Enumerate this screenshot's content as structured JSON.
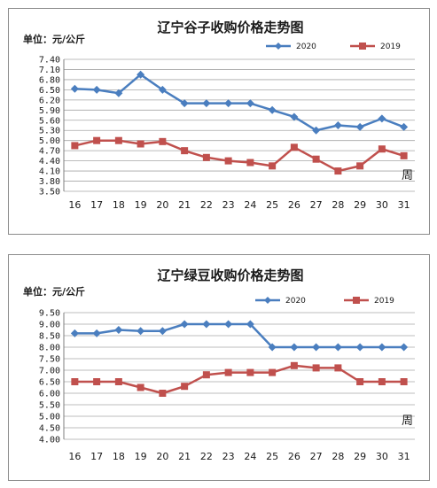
{
  "chart_data": [
    {
      "type": "line",
      "title": "辽宁谷子收购价格走势图",
      "ylabel": "单位：元/公斤",
      "xlabel": "周",
      "x": [
        16,
        17,
        18,
        19,
        20,
        21,
        22,
        23,
        24,
        25,
        26,
        27,
        28,
        29,
        30,
        31
      ],
      "ylim": [
        3.5,
        7.4
      ],
      "yticks": [
        "7.40",
        "7.10",
        "6.80",
        "6.50",
        "6.20",
        "5.90",
        "5.60",
        "5.30",
        "5.00",
        "4.70",
        "4.40",
        "4.10",
        "3.80",
        "3.50"
      ],
      "legend": "top-right",
      "series": [
        {
          "name": "2020",
          "color": "#4a7ebf",
          "marker": "diamond",
          "values": [
            6.53,
            6.5,
            6.4,
            6.95,
            6.5,
            6.1,
            6.1,
            6.1,
            6.1,
            5.9,
            5.7,
            5.3,
            5.45,
            5.4,
            5.65,
            5.4
          ]
        },
        {
          "name": "2019",
          "color": "#c0504d",
          "marker": "square",
          "values": [
            4.85,
            5.0,
            5.0,
            4.9,
            4.97,
            4.7,
            4.5,
            4.4,
            4.35,
            4.25,
            4.8,
            4.45,
            4.1,
            4.25,
            4.75,
            4.55
          ]
        }
      ]
    },
    {
      "type": "line",
      "title": "辽宁绿豆收购价格走势图",
      "ylabel": "单位：元/公斤",
      "xlabel": "周",
      "x": [
        16,
        17,
        18,
        19,
        20,
        21,
        22,
        23,
        24,
        25,
        26,
        27,
        28,
        29,
        30,
        31
      ],
      "ylim": [
        4.0,
        9.5
      ],
      "yticks": [
        "9.50",
        "9.00",
        "8.50",
        "8.00",
        "7.50",
        "7.00",
        "6.50",
        "6.00",
        "5.50",
        "5.00",
        "4.50",
        "4.00"
      ],
      "legend": "top-right",
      "series": [
        {
          "name": "2020",
          "color": "#4a7ebf",
          "marker": "diamond",
          "values": [
            8.6,
            8.6,
            8.75,
            8.7,
            8.7,
            9.0,
            9.0,
            9.0,
            9.0,
            8.0,
            8.0,
            8.0,
            8.0,
            8.0,
            8.0,
            8.0
          ]
        },
        {
          "name": "2019",
          "color": "#c0504d",
          "marker": "square",
          "values": [
            6.5,
            6.5,
            6.5,
            6.25,
            6.0,
            6.3,
            6.8,
            6.9,
            6.9,
            6.9,
            7.2,
            7.1,
            7.1,
            6.5,
            6.5,
            6.5
          ]
        }
      ]
    }
  ]
}
